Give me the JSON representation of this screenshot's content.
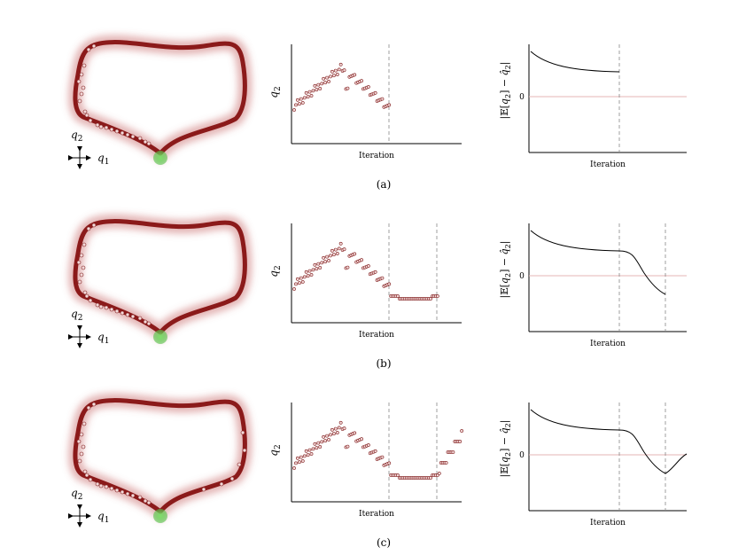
{
  "rows": [
    {
      "caption": "(a)",
      "scatter": {
        "ylabel": "q2",
        "xlabel": "Iteration"
      },
      "error": {
        "ylabel": "|E[q2] − q̂2|",
        "xlabel": "Iteration",
        "zero_tick": "0"
      }
    },
    {
      "caption": "(b)",
      "scatter": {
        "ylabel": "q2",
        "xlabel": "Iteration"
      },
      "error": {
        "ylabel": "|E[q2] − q̂2|",
        "xlabel": "Iteration",
        "zero_tick": "0"
      }
    },
    {
      "caption": "(c)",
      "scatter": {
        "ylabel": "q2",
        "xlabel": "Iteration"
      },
      "error": {
        "ylabel": "|E[q2] − q̂2|",
        "xlabel": "Iteration",
        "zero_tick": "0"
      }
    }
  ],
  "axes_legend": {
    "vertical": "q2",
    "horizontal": "q1"
  },
  "colors": {
    "ring": "#8b1a1a",
    "ring_glow": "#c46060",
    "sample_fill": "#f4dada",
    "sample_stroke": "#7a1515",
    "start_point": "#58c04a",
    "zero_line": "#e6b4b4",
    "divider": "#888888"
  }
}
